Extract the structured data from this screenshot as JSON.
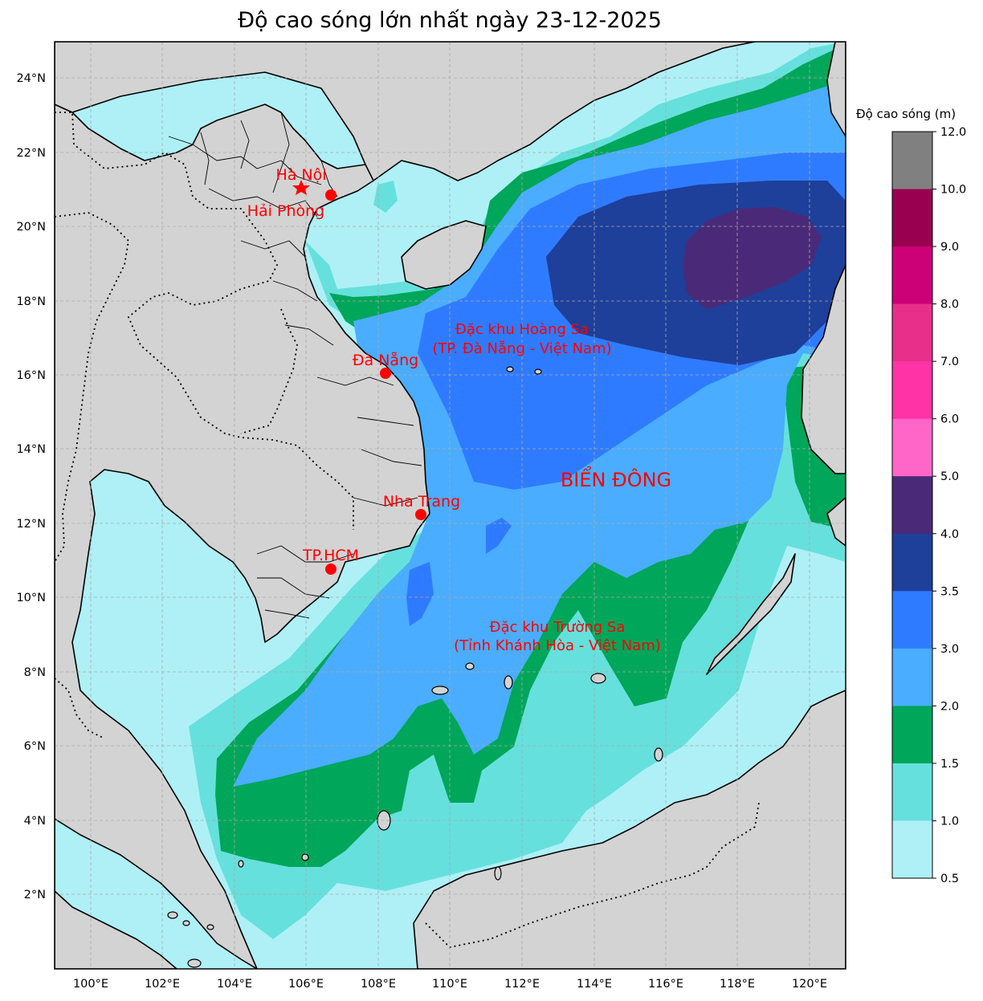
{
  "title": "Độ cao sóng lớn nhất ngày 23-12-2025",
  "axes": {
    "lon_ticks": [
      "100°E",
      "102°E",
      "104°E",
      "106°E",
      "108°E",
      "110°E",
      "112°E",
      "114°E",
      "116°E",
      "118°E",
      "120°E"
    ],
    "lat_ticks": [
      "2°N",
      "4°N",
      "6°N",
      "8°N",
      "10°N",
      "12°N",
      "14°N",
      "16°N",
      "18°N",
      "20°N",
      "22°N",
      "24°N"
    ]
  },
  "colorbar": {
    "title": "Độ cao sóng (m)",
    "ticks": [
      "12.0",
      "10.0",
      "9.0",
      "8.0",
      "7.0",
      "6.0",
      "5.0",
      "4.0",
      "3.5",
      "3.0",
      "2.0",
      "1.5",
      "1.0",
      "0.5"
    ],
    "colors": [
      "#808080",
      "#990050",
      "#cc0077",
      "#e8308a",
      "#ff33a6",
      "#ff66c8",
      "#4a2a78",
      "#1e3f9a",
      "#2f7bff",
      "#4aadff",
      "#00a65a",
      "#66e0dd",
      "#aef0f6"
    ]
  },
  "labels": {
    "ha_noi": "Hà Nội",
    "hai_phong": "Hải Phòng",
    "da_nang": "Đà Nẵng",
    "nha_trang": "Nha Trang",
    "tphcm": "TP.HCM",
    "bien_dong": "BIỂN ĐÔNG",
    "hoang_sa_1": "Đặc khu Hoàng Sa",
    "hoang_sa_2": "(TP. Đà Nẵng - Việt Nam)",
    "truong_sa_1": "Đặc khu Trường Sa",
    "truong_sa_2": "(Tỉnh Khánh Hòa - Việt Nam)"
  },
  "colors": {
    "land": "#d3d3d3",
    "marker": "#ff0000",
    "grid": "#aaaaaa"
  }
}
